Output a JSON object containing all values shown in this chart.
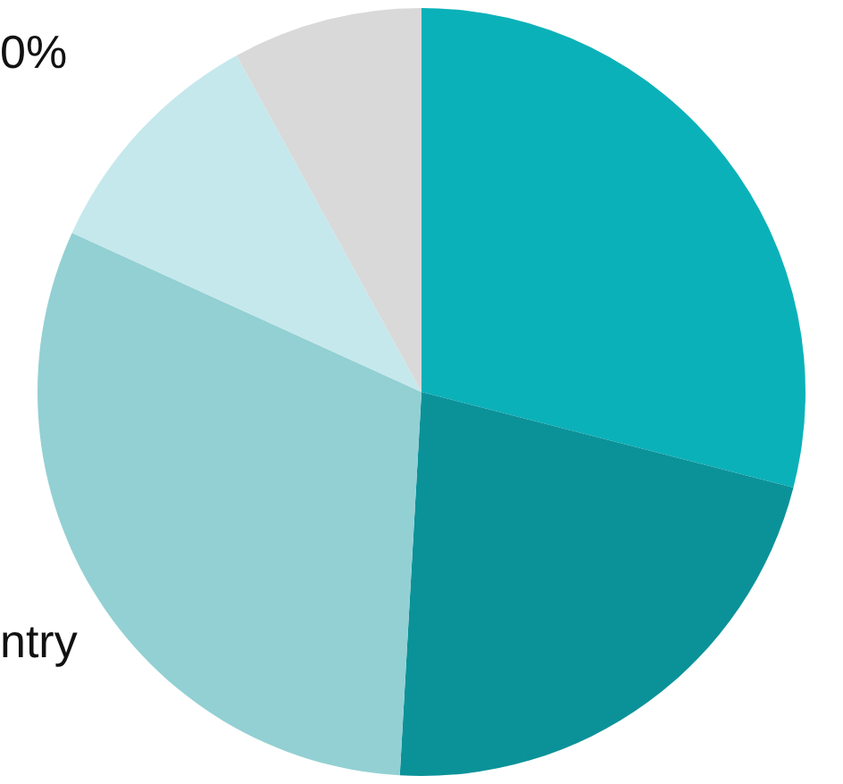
{
  "chart_data": {
    "type": "pie",
    "categories": [
      null,
      null,
      null,
      null,
      null
    ],
    "values": [
      29.0,
      21.9,
      30.9,
      10.2,
      8.0
    ],
    "colors": [
      "#0bb1b9",
      "#0b9299",
      "#93d0d3",
      "#c5e8ec",
      "#d9d9d9"
    ],
    "annotations": [
      "0%",
      "ntry"
    ]
  }
}
